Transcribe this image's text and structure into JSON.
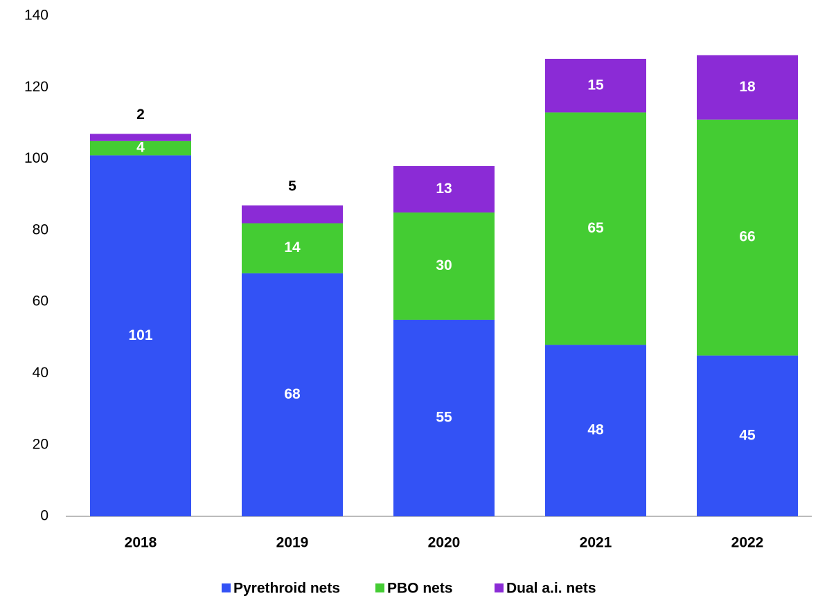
{
  "chart_data": {
    "type": "stacked_bar",
    "categories": [
      "2018",
      "2019",
      "2020",
      "2021",
      "2022"
    ],
    "series": [
      {
        "name": "Pyrethroid nets",
        "color": "#3352f5",
        "values": [
          101,
          68,
          55,
          48,
          45
        ]
      },
      {
        "name": "PBO nets",
        "color": "#44cc33",
        "values": [
          4,
          14,
          30,
          65,
          66
        ]
      },
      {
        "name": "Dual a.i. nets",
        "color": "#8b2bd6",
        "values": [
          2,
          5,
          13,
          15,
          18
        ]
      }
    ],
    "ylim": [
      0,
      140
    ],
    "yticks": [
      0,
      20,
      40,
      60,
      80,
      100,
      120,
      140
    ],
    "grid": false,
    "legend": "bottom"
  }
}
